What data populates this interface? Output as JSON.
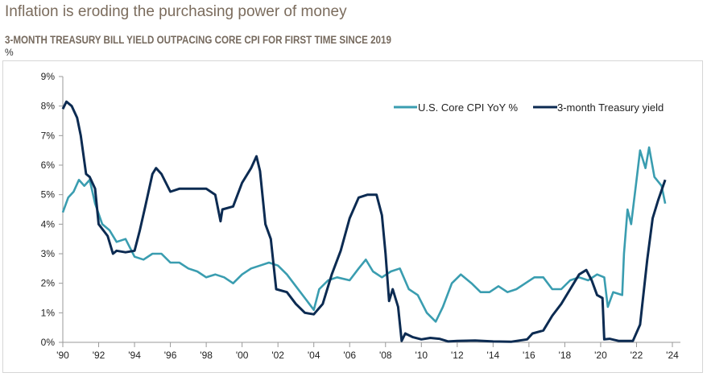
{
  "title": "Inflation is eroding the purchasing power of money",
  "chart_data": {
    "type": "line",
    "title": "3-MONTH TREASURY  BILL YIELD OUTPACING CORE CPI FOR FIRST TIME SINCE 2019",
    "ylabel": "%",
    "xlim": [
      1990,
      2024
    ],
    "ylim": [
      0,
      9
    ],
    "yticks": [
      "0%",
      "1%",
      "2%",
      "3%",
      "4%",
      "5%",
      "6%",
      "7%",
      "8%",
      "9%"
    ],
    "xticks": [
      "'90",
      "'92",
      "'94",
      "'96",
      "'98",
      "'00",
      "'02",
      "'04",
      "'06",
      "'08",
      "'10",
      "'12",
      "'14",
      "'16",
      "'18",
      "'20",
      "'22",
      "'24"
    ],
    "grid": false,
    "legend_placement": "top-right",
    "series": [
      {
        "name": "U.S. Core CPI YoY %",
        "color": "#3a9db0",
        "x": [
          1990.0,
          1990.3,
          1990.6,
          1990.9,
          1991.2,
          1991.5,
          1991.8,
          1992.2,
          1992.6,
          1993.0,
          1993.5,
          1994.0,
          1994.5,
          1995.0,
          1995.5,
          1996.0,
          1996.5,
          1997.0,
          1997.5,
          1998.0,
          1998.5,
          1999.0,
          1999.5,
          2000.0,
          2000.5,
          2001.0,
          2001.5,
          2002.0,
          2002.5,
          2003.0,
          2003.5,
          2004.0,
          2004.3,
          2004.8,
          2005.3,
          2006.0,
          2006.5,
          2006.9,
          2007.3,
          2007.8,
          2008.3,
          2008.8,
          2009.3,
          2009.8,
          2010.3,
          2010.8,
          2011.2,
          2011.7,
          2012.2,
          2012.8,
          2013.3,
          2013.8,
          2014.3,
          2014.8,
          2015.3,
          2015.8,
          2016.3,
          2016.8,
          2017.3,
          2017.8,
          2018.3,
          2018.8,
          2019.3,
          2019.8,
          2020.2,
          2020.4,
          2020.7,
          2021.2,
          2021.3,
          2021.5,
          2021.7,
          2022.0,
          2022.2,
          2022.5,
          2022.7,
          2023.0,
          2023.4,
          2023.6
        ],
        "values": [
          4.4,
          4.9,
          5.1,
          5.5,
          5.3,
          5.5,
          4.7,
          4.0,
          3.8,
          3.4,
          3.5,
          2.9,
          2.8,
          3.0,
          3.0,
          2.7,
          2.7,
          2.5,
          2.4,
          2.2,
          2.3,
          2.2,
          2.0,
          2.3,
          2.5,
          2.6,
          2.7,
          2.6,
          2.3,
          1.9,
          1.5,
          1.1,
          1.8,
          2.1,
          2.2,
          2.1,
          2.5,
          2.8,
          2.4,
          2.2,
          2.4,
          2.5,
          1.8,
          1.6,
          1.0,
          0.7,
          1.2,
          2.0,
          2.3,
          2.0,
          1.7,
          1.7,
          1.9,
          1.7,
          1.8,
          2.0,
          2.2,
          2.2,
          1.8,
          1.8,
          2.1,
          2.2,
          2.1,
          2.3,
          2.2,
          1.2,
          1.7,
          1.6,
          3.0,
          4.5,
          4.0,
          5.5,
          6.5,
          5.9,
          6.6,
          5.6,
          5.3,
          4.7
        ]
      },
      {
        "name": "3-month Treasury yield",
        "color": "#0c2b52",
        "x": [
          1990.0,
          1990.2,
          1990.5,
          1990.8,
          1991.0,
          1991.3,
          1991.5,
          1991.8,
          1992.0,
          1992.5,
          1992.8,
          1993.0,
          1993.5,
          1994.0,
          1994.3,
          1994.6,
          1995.0,
          1995.2,
          1995.5,
          1996.0,
          1996.5,
          1997.0,
          1997.5,
          1998.0,
          1998.5,
          1998.8,
          1998.9,
          1999.5,
          2000.0,
          2000.5,
          2000.8,
          2001.0,
          2001.3,
          2001.6,
          2001.9,
          2002.5,
          2003.0,
          2003.5,
          2004.0,
          2004.5,
          2005.0,
          2005.5,
          2006.0,
          2006.5,
          2007.0,
          2007.5,
          2007.8,
          2008.0,
          2008.2,
          2008.4,
          2008.7,
          2008.9,
          2009.1,
          2009.5,
          2010.0,
          2010.5,
          2011.0,
          2011.5,
          2012.0,
          2013.0,
          2014.0,
          2015.0,
          2015.9,
          2016.2,
          2016.8,
          2017.3,
          2017.8,
          2018.3,
          2018.8,
          2019.2,
          2019.5,
          2019.8,
          2020.1,
          2020.2,
          2020.5,
          2021.0,
          2021.8,
          2022.2,
          2022.6,
          2022.9,
          2023.2,
          2023.6
        ],
        "values": [
          7.9,
          8.15,
          8.0,
          7.6,
          7.0,
          5.7,
          5.6,
          5.2,
          4.0,
          3.6,
          3.0,
          3.1,
          3.05,
          3.1,
          3.8,
          4.6,
          5.7,
          5.9,
          5.7,
          5.1,
          5.2,
          5.2,
          5.2,
          5.2,
          5.0,
          4.1,
          4.5,
          4.6,
          5.4,
          5.9,
          6.3,
          5.8,
          4.0,
          3.5,
          1.8,
          1.7,
          1.3,
          1.0,
          0.95,
          1.3,
          2.3,
          3.1,
          4.2,
          4.9,
          5.0,
          5.0,
          4.3,
          3.0,
          1.4,
          1.8,
          1.2,
          0.05,
          0.3,
          0.18,
          0.1,
          0.15,
          0.12,
          0.03,
          0.05,
          0.06,
          0.03,
          0.02,
          0.1,
          0.3,
          0.4,
          0.9,
          1.3,
          1.8,
          2.3,
          2.45,
          2.1,
          1.6,
          1.5,
          0.1,
          0.12,
          0.05,
          0.05,
          0.6,
          2.8,
          4.2,
          4.8,
          5.5
        ]
      }
    ]
  }
}
